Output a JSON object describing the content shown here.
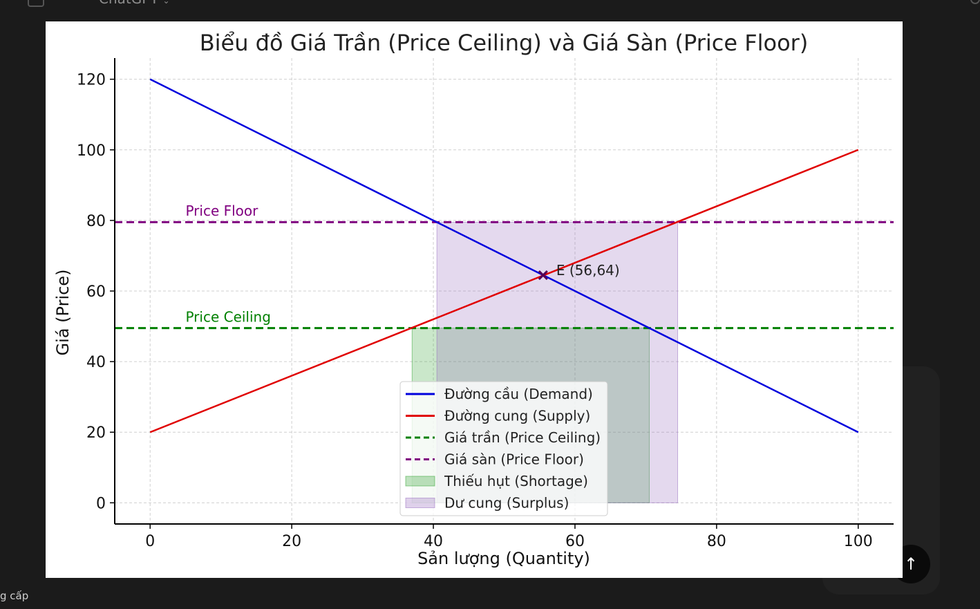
{
  "app": {
    "title": "ChatGPT",
    "bottom_left_text": "g cấp"
  },
  "chart_data": {
    "type": "line",
    "title": "Biểu đồ Giá Trần (Price Ceiling) và Giá Sàn (Price Floor)",
    "xlabel": "Sản lượng (Quantity)",
    "ylabel": "Giá (Price)",
    "xlim": [
      -5,
      105
    ],
    "ylim": [
      -6,
      126
    ],
    "xticks": [
      0,
      20,
      40,
      60,
      80,
      100
    ],
    "yticks": [
      0,
      20,
      40,
      60,
      80,
      100,
      120
    ],
    "grid": true,
    "legend_position": "lower center",
    "series": [
      {
        "name": "Đường cầu (Demand)",
        "x": [
          0,
          100
        ],
        "y": [
          120,
          20
        ],
        "color": "#0000dd",
        "style": "solid"
      },
      {
        "name": "Đường cung (Supply)",
        "x": [
          0,
          100
        ],
        "y": [
          20,
          100
        ],
        "color": "#e00000",
        "style": "solid"
      },
      {
        "name": "Giá trần (Price Ceiling)",
        "y_const": 49.5,
        "color": "#008000",
        "style": "dashed"
      },
      {
        "name": "Giá sàn (Price Floor)",
        "y_const": 79.5,
        "color": "#800080",
        "style": "dashed"
      }
    ],
    "areas": [
      {
        "name": "Thiếu hụt (Shortage)",
        "x": [
          37,
          70.5
        ],
        "y": [
          0,
          49.5
        ],
        "color": "#2ca02c",
        "opacity": 0.25
      },
      {
        "name": "Dư cung (Surplus)",
        "x": [
          40.5,
          74.5
        ],
        "y": [
          0,
          79.5
        ],
        "color": "#9467bd",
        "opacity": 0.25
      }
    ],
    "equilibrium": {
      "x": 55.5,
      "y": 64.5,
      "label": "E (56,64)"
    },
    "annotations": [
      {
        "text": "Price Floor",
        "x": 5,
        "y": 81.3,
        "color": "#800080"
      },
      {
        "text": "Price Ceiling",
        "x": 5,
        "y": 51.3,
        "color": "#008000"
      }
    ]
  },
  "ui": {
    "scroll_button_glyph": "↑"
  }
}
